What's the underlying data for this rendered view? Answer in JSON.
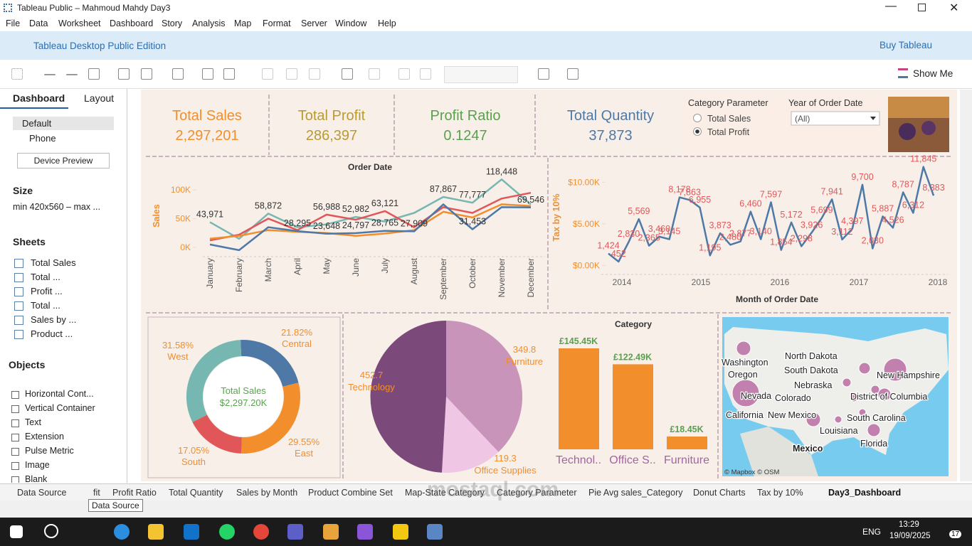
{
  "window": {
    "title": "Tableau Public – Mahmoud Mahdy Day3"
  },
  "menu": [
    "File",
    "Data",
    "Worksheet",
    "Dashboard",
    "Story",
    "Analysis",
    "Map",
    "Format",
    "Server",
    "Window",
    "Help"
  ],
  "banner": {
    "edition": "Tableau Desktop Public Edition",
    "buy": "Buy Tableau"
  },
  "toolbar": {
    "show_me": "Show Me"
  },
  "sidebar": {
    "tabs": [
      "Dashboard",
      "Layout"
    ],
    "devices": [
      "Default",
      "Phone"
    ],
    "device_preview": "Device Preview",
    "size_title": "Size",
    "size_value": "min 420x560 – max ...",
    "sheets_title": "Sheets",
    "sheets": [
      "Total Sales",
      "Total ...",
      "Profit ...",
      "Total ...",
      "Sales by ...",
      "Product ..."
    ],
    "objects_title": "Objects",
    "objects": [
      "Horizontal Cont...",
      "Vertical Container",
      "Text",
      "Extension",
      "Pulse Metric",
      "Image",
      "Blank"
    ]
  },
  "kpis": [
    {
      "label": "Total Sales",
      "value": "2,297,201",
      "color": "#f28e2b"
    },
    {
      "label": "Total Profit",
      "value": "286,397",
      "color": "#b89a34"
    },
    {
      "label": "Profit Ratio",
      "value": "0.1247",
      "color": "#59a14f"
    },
    {
      "label": "Total Quantity",
      "value": "37,873",
      "color": "#4e79a7"
    }
  ],
  "parameters": {
    "category_title": "Category Parameter",
    "options": [
      "Total Sales",
      "Total Profit"
    ],
    "selected_option": 1,
    "year_title": "Year of Order Date",
    "year_value": "(All)"
  },
  "chart_data": [
    {
      "type": "line",
      "title": "Order Date",
      "y_label": "Sales",
      "categories": [
        "January",
        "February",
        "March",
        "April",
        "May",
        "June",
        "July",
        "August",
        "September",
        "October",
        "November",
        "December"
      ],
      "ylim": [
        -15000,
        125000
      ],
      "yticks": [
        {
          "value": 0,
          "label": "0K"
        },
        {
          "value": 50000,
          "label": "50K"
        },
        {
          "value": 100000,
          "label": "100K"
        }
      ],
      "series": [
        {
          "color": "#76b7b2",
          "values": [
            43971,
            15000,
            58872,
            35000,
            40000,
            52982,
            45000,
            60000,
            87867,
            77777,
            118448,
            75000
          ],
          "value_labels": [
            "43,971",
            null,
            "58,872",
            null,
            null,
            "52,982",
            null,
            null,
            "87,867",
            "77,777",
            "118,448",
            null
          ]
        },
        {
          "color": "#e15759",
          "values": [
            12000,
            22000,
            50000,
            30000,
            56988,
            48000,
            63121,
            35000,
            70000,
            60000,
            85000,
            95000
          ],
          "value_labels": [
            null,
            null,
            null,
            null,
            "56,988",
            null,
            "63,121",
            null,
            null,
            null,
            null,
            null
          ]
        },
        {
          "color": "#f28e2b",
          "values": [
            15000,
            20000,
            30000,
            27000,
            25000,
            20000,
            24000,
            30000,
            62000,
            52000,
            75000,
            72000
          ]
        },
        {
          "color": "#4e79a7",
          "values": [
            5000,
            -5000,
            35000,
            28295,
            23648,
            24797,
            28765,
            27909,
            75000,
            31453,
            70000,
            69546
          ],
          "value_labels": [
            null,
            null,
            null,
            "28,295",
            "23,648",
            "24,797",
            "28,765",
            "27,909",
            null,
            "31,453",
            null,
            "69,546"
          ]
        }
      ]
    },
    {
      "type": "line",
      "y_label": "Tax by 10%",
      "x_label": "Month of Order Date",
      "x_axis_labels": [
        "2014",
        "2015",
        "2016",
        "2017",
        "2018"
      ],
      "ylim": [
        -1000,
        12500
      ],
      "yticks": [
        {
          "value": 0,
          "label": "$0.00K"
        },
        {
          "value": 5000,
          "label": "$5.00K"
        },
        {
          "value": 10000,
          "label": "$10.00K"
        }
      ],
      "series": [
        {
          "color": "#4e79a7",
          "label_color": "#e15759",
          "values": [
            1424,
            452,
            2830,
            5569,
            2365,
            3460,
            3145,
            8178,
            7863,
            6955,
            1195,
            3873,
            2480,
            2877,
            6460,
            3140,
            7597,
            1854,
            5172,
            2298,
            3926,
            5699,
            7941,
            3112,
            4397,
            9700,
            2030,
            5887,
            4526,
            8787,
            6312,
            11845,
            8383
          ],
          "value_labels": [
            "1,424",
            "452",
            "2,830",
            "5,569",
            "2,365",
            "3,460",
            "3,145",
            "8,178",
            "7,863",
            "6,955",
            "1,195",
            "3,873",
            "2,480",
            "2,877",
            "6,460",
            "3,140",
            "7,597",
            "1,854",
            "5,172",
            "2,298",
            "3,926",
            "5,699",
            "7,941",
            "3,112",
            "4,397",
            "9,700",
            "2,030",
            "5,887",
            "4,526",
            "8,787",
            "6,312",
            "11,845",
            "8,383"
          ]
        }
      ]
    },
    {
      "type": "donut",
      "center_title": "Total Sales",
      "center_value": "$2,297.20K",
      "categories": [
        "Central",
        "East",
        "South",
        "West"
      ],
      "values": [
        21.82,
        29.55,
        17.05,
        31.58
      ],
      "value_labels": [
        "21.82%",
        "29.55%",
        "17.05%",
        "31.58%"
      ],
      "colors": [
        "#4e79a7",
        "#f28e2b",
        "#e15759",
        "#76b7b2"
      ]
    },
    {
      "type": "pie",
      "categories": [
        "Furniture",
        "Office Supplies",
        "Technology"
      ],
      "values": [
        349.8,
        119.3,
        452.7
      ],
      "colors": [
        "#c994b9",
        "#efc6e3",
        "#7b4a7b"
      ]
    },
    {
      "type": "bar",
      "title": "Category",
      "color": "#f28e2b",
      "categories": [
        "Technol..",
        "Office S..",
        "Furniture"
      ],
      "values": [
        145.45,
        122.49,
        18.45
      ],
      "value_labels": [
        "£145.45K",
        "£122.49K",
        "£18.45K"
      ]
    }
  ],
  "map": {
    "labels": [
      "Washington",
      "Oregon",
      "Nevada",
      "California",
      "North Dakota",
      "South Dakota",
      "Nebraska",
      "Colorado",
      "New Mexico",
      "New Hampshire",
      "District of Columbia",
      "South Carolina",
      "Louisiana",
      "Florida",
      "Mexico"
    ],
    "credit": "© Mapbox © OSM"
  },
  "tabs": [
    "Data Source",
    "fit",
    "Profit Ratio",
    "Total Quantity",
    "Sales by Month",
    "Product Combine Set",
    "Map-State Category",
    "Category Parameter",
    "Pie Avg sales_Category",
    "Donut Charts",
    "Tax by 10%",
    "Day3_Dashboard"
  ],
  "active_tab": 11,
  "tooltip": "Data Source",
  "watermark": "mostaql.com",
  "taskbar": {
    "language": "ENG",
    "time": "13:29",
    "date": "19/09/2025",
    "badge": "17"
  }
}
